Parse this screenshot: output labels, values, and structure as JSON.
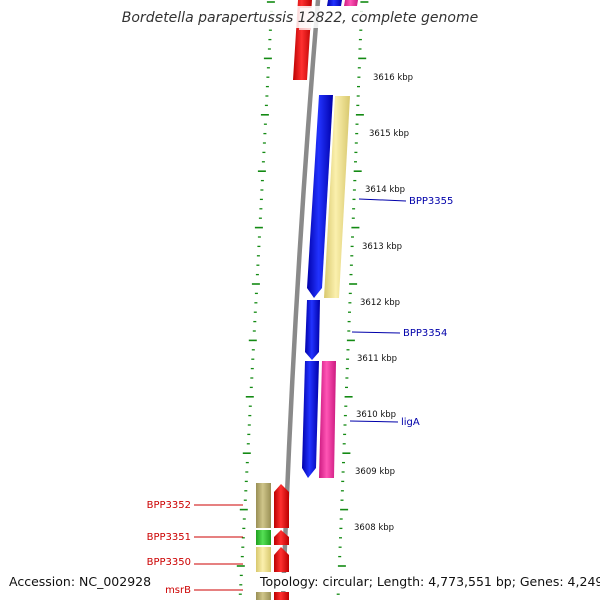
{
  "title": "Bordetella parapertussis 12822, complete genome",
  "footer": {
    "accession": "Accession: NC_002928",
    "topology": "Topology: circular; Length: 4,773,551 bp; Genes: 4,249"
  },
  "colors": {
    "blue": "#0000ee",
    "red": "#ee0000",
    "pink": "#ee2a9a",
    "khaki": "#f1e38e",
    "olive": "#b7ad6e",
    "green": "#33cc33",
    "tick": "#138a13",
    "backbone": "#8a8a8a",
    "label_blue": "#0000aa",
    "label_red": "#cc0000"
  },
  "kbp_labels": [
    "3616 kbp",
    "3615 kbp",
    "3614 kbp",
    "3613 kbp",
    "3612 kbp",
    "3611 kbp",
    "3610 kbp",
    "3609 kbp",
    "3608 kbp"
  ],
  "right_genes": [
    {
      "name": "BPP3355",
      "color": "label_blue"
    },
    {
      "name": "BPP3354",
      "color": "label_blue"
    },
    {
      "name": "ligA",
      "color": "label_blue"
    }
  ],
  "left_genes": [
    {
      "name": "BPP3352",
      "color": "label_red"
    },
    {
      "name": "BPP3351",
      "color": "label_red"
    },
    {
      "name": "BPP3350",
      "color": "label_red"
    },
    {
      "name": "msrB",
      "color": "label_red"
    }
  ]
}
